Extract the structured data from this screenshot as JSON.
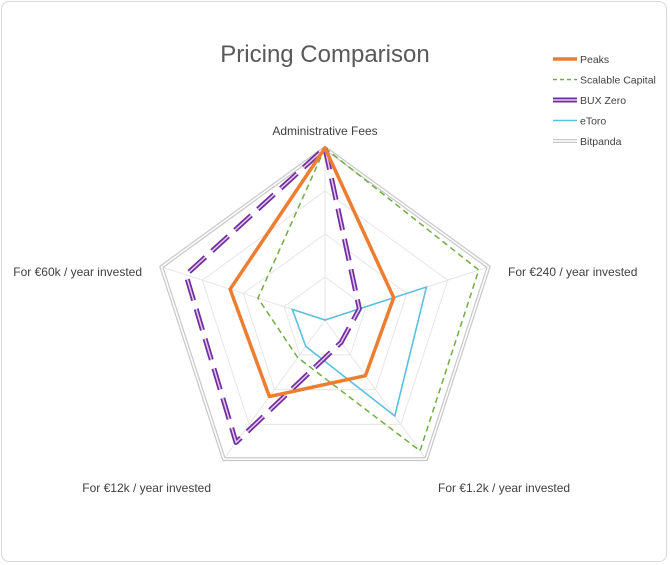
{
  "chart_data": {
    "type": "radar",
    "title": "Pricing Comparison",
    "categories": [
      "Administrative Fees",
      "For €240 / year invested",
      "For €1.2k / year invested",
      "For €12k / year invested",
      "For €60k / year invested"
    ],
    "rmax": 1.0,
    "gridlines": true,
    "grid_levels": [
      0.25,
      0.5,
      0.75,
      1.0
    ],
    "legend_position": "top-right",
    "series": [
      {
        "name": "Peaks",
        "values": [
          1.0,
          0.42,
          0.4,
          0.55,
          0.58
        ],
        "color": "#ED7D31",
        "style": "solid-thick"
      },
      {
        "name": "Scalable Capital",
        "values": [
          1.0,
          0.94,
          0.94,
          0.27,
          0.41
        ],
        "color": "#70AD47",
        "style": "dashed"
      },
      {
        "name": "BUX Zero",
        "values": [
          1.0,
          0.21,
          0.16,
          0.88,
          0.85
        ],
        "color": "#7030A0",
        "style": "double-dashed"
      },
      {
        "name": "eToro",
        "values": [
          0.0,
          0.62,
          0.69,
          0.19,
          0.2
        ],
        "color": "#5BC0DE",
        "style": "solid"
      },
      {
        "name": "Bitpanda",
        "values": [
          1.0,
          1.0,
          1.0,
          1.0,
          1.0
        ],
        "color": "#C9C9C9",
        "style": "solid-double"
      }
    ]
  }
}
